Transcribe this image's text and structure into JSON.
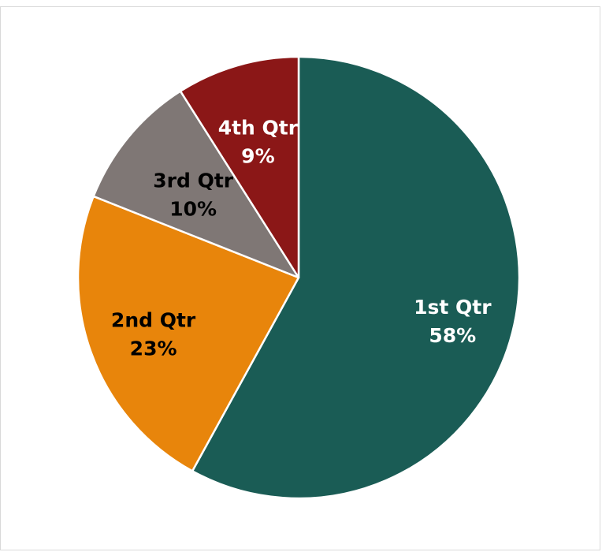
{
  "chart_data": {
    "type": "pie",
    "title": "",
    "categories": [
      "1st Qtr",
      "2nd Qtr",
      "3rd Qtr",
      "4th Qtr"
    ],
    "values": [
      58,
      23,
      10,
      9
    ],
    "labels": [
      {
        "name": "1st Qtr",
        "percent": "58%"
      },
      {
        "name": "2nd Qtr",
        "percent": "23%"
      },
      {
        "name": "3rd Qtr",
        "percent": "10%"
      },
      {
        "name": "4th Qtr",
        "percent": "9%"
      }
    ],
    "colors": [
      "#1a5c55",
      "#e8850b",
      "#7f7775",
      "#8b1717"
    ],
    "label_colors": [
      "#ffffff",
      "#000000",
      "#000000",
      "#ffffff"
    ],
    "start_angle": "12 o'clock",
    "direction": "clockwise",
    "legend": "none"
  }
}
